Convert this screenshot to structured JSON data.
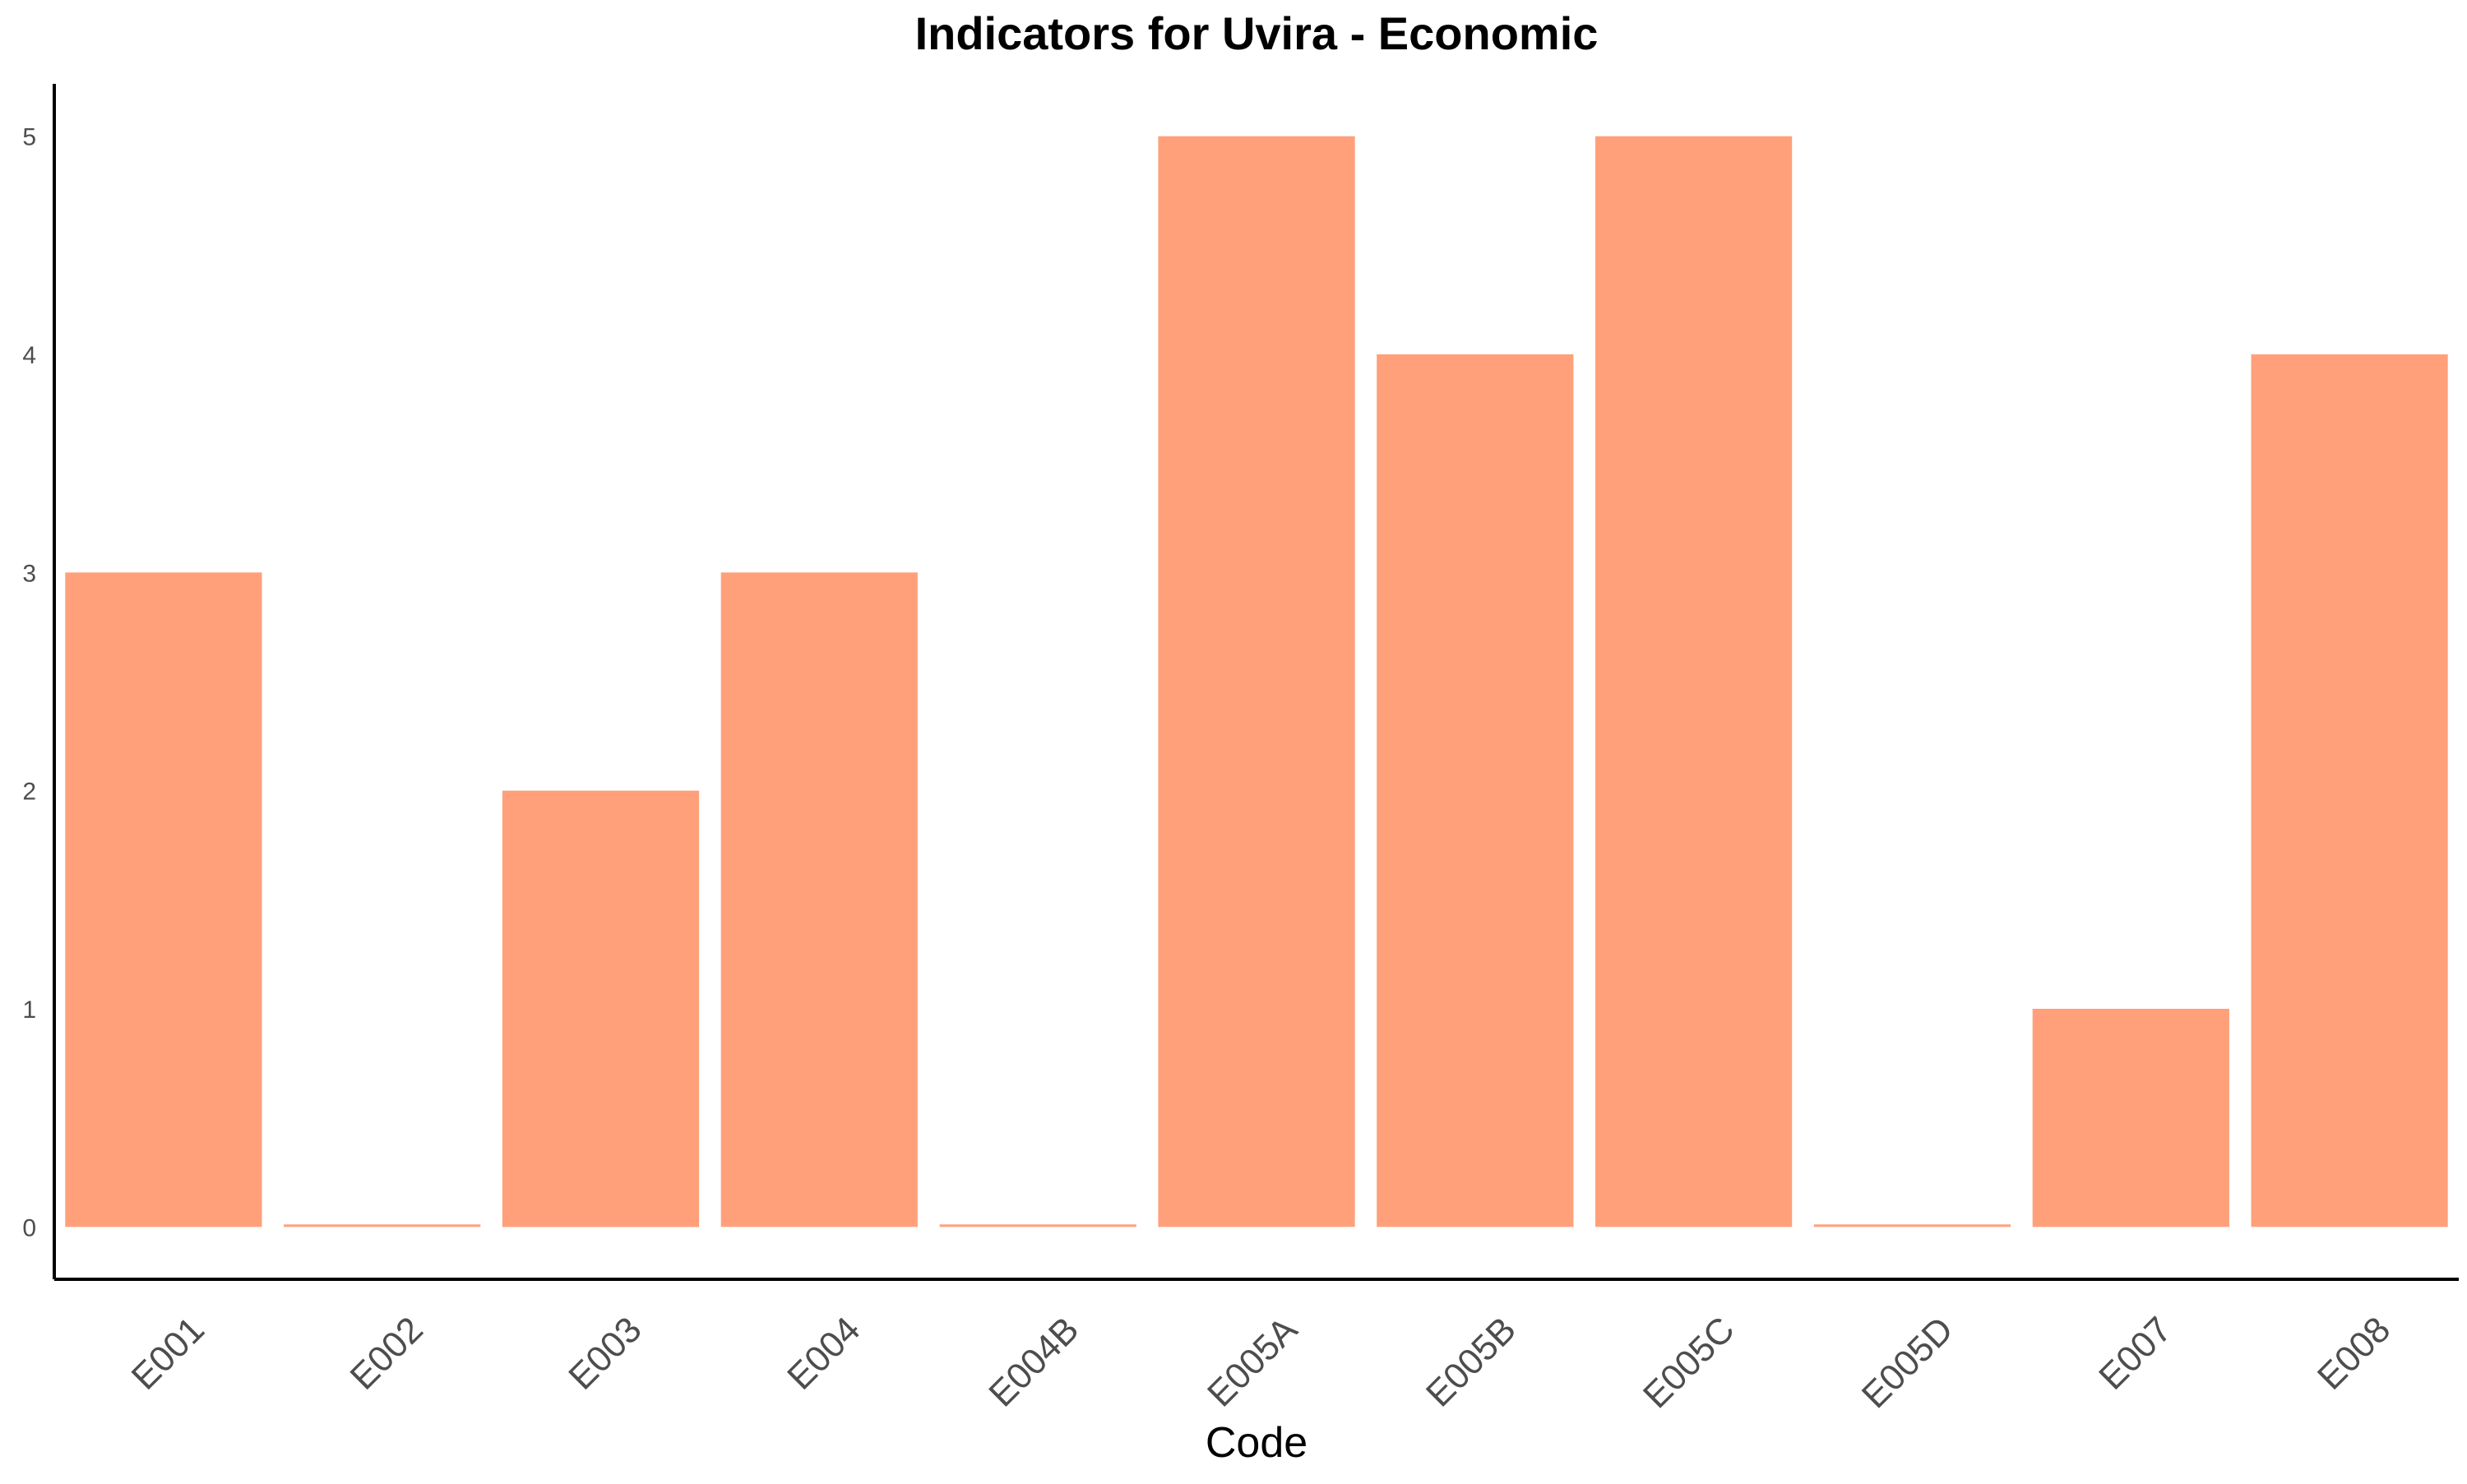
{
  "chart_data": {
    "type": "bar",
    "title": "Indicators for Uvira - Economic",
    "xlabel": "Code",
    "ylabel": "",
    "categories": [
      "E001",
      "E002",
      "E003",
      "E004",
      "E004B",
      "E005A",
      "E005B",
      "E005C",
      "E005D",
      "E007",
      "E008"
    ],
    "values": [
      3,
      0,
      2,
      3,
      0,
      5,
      4,
      5,
      0,
      1,
      4
    ],
    "ylim": [
      -0.24,
      5.24
    ],
    "yticks": [
      0,
      1,
      2,
      3,
      4,
      5
    ],
    "grid": false,
    "legend": "none",
    "colors": {
      "bar": "#FFA07A",
      "axis": "#000000",
      "tick_label": "#4D4D4D",
      "title": "#000000"
    }
  }
}
